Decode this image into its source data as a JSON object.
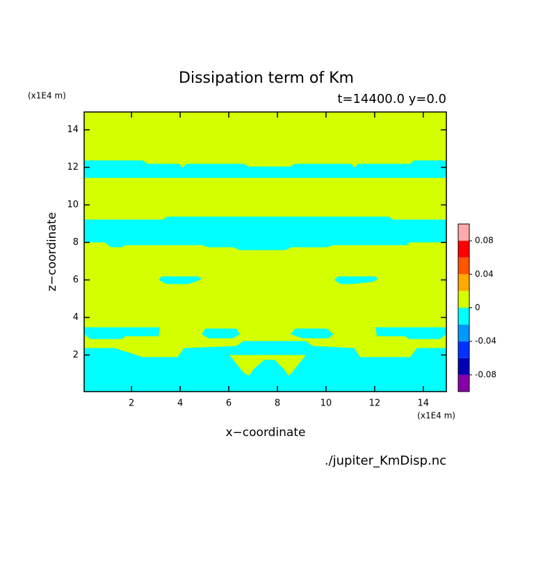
{
  "chart_data": {
    "type": "contour",
    "title": "Dissipation term of Km",
    "subtitle": "t=14400.0 y=0.0",
    "xlabel": "x−coordinate",
    "ylabel": "z−coordinate",
    "xunit": "(x1E4 m)",
    "yunit": "(x1E4 m)",
    "source": "./jupiter_KmDisp.nc",
    "xlim": [
      0.05,
      14.95
    ],
    "ylim": [
      0.05,
      14.95
    ],
    "xticks": [
      2,
      4,
      6,
      8,
      10,
      12,
      14
    ],
    "yticks": [
      2,
      4,
      6,
      8,
      10,
      12,
      14
    ],
    "background": "#d4ff00",
    "regions": [
      {
        "color": "#00ffff",
        "x": [
          0.05,
          2.46,
          2.66,
          3.97,
          4.09,
          4.26,
          6.6,
          6.83,
          8.54,
          8.71,
          11.03,
          11.17,
          11.34,
          13.46,
          13.63,
          14.95,
          14.95,
          0.05
        ],
        "y": [
          12.37,
          12.37,
          12.19,
          12.19,
          12.0,
          12.19,
          12.19,
          12.04,
          12.04,
          12.19,
          12.19,
          12.0,
          12.19,
          12.19,
          12.37,
          12.37,
          11.44,
          11.44
        ]
      },
      {
        "color": "#00ffff",
        "x": [
          0.05,
          3.31,
          3.46,
          12.6,
          12.74,
          14.95,
          14.95,
          13.46,
          13.31,
          10.31,
          10.03,
          8.6,
          8.31,
          6.46,
          6.17,
          5.17,
          4.89,
          1.74,
          1.6,
          1.17,
          0.89,
          0.05
        ],
        "y": [
          9.22,
          9.22,
          9.37,
          9.37,
          9.22,
          9.22,
          8.0,
          8.0,
          7.85,
          7.85,
          7.74,
          7.74,
          7.59,
          7.59,
          7.74,
          7.74,
          7.85,
          7.85,
          7.74,
          7.74,
          8.0,
          8.0
        ]
      },
      {
        "color": "#00ffff",
        "x": [
          3.23,
          4.74,
          4.89,
          4.6,
          4.31,
          3.46,
          3.11
        ],
        "y": [
          6.19,
          6.19,
          6.04,
          5.89,
          5.78,
          5.78,
          6.0
        ]
      },
      {
        "color": "#00ffff",
        "x": [
          10.49,
          12.03,
          12.14,
          11.89,
          11.03,
          10.6,
          10.34
        ],
        "y": [
          6.19,
          6.19,
          6.04,
          5.89,
          5.78,
          5.78,
          6.0
        ]
      },
      {
        "color": "#00ffff",
        "x": [
          0.05,
          3.17,
          3.11,
          1.74,
          1.6,
          0.31,
          0.05
        ],
        "y": [
          3.48,
          3.48,
          3.0,
          3.0,
          2.85,
          2.85,
          3.11
        ]
      },
      {
        "color": "#00ffff",
        "x": [
          14.95,
          12.03,
          12.09,
          13.26,
          13.4,
          14.69,
          14.95
        ],
        "y": [
          3.48,
          3.48,
          3.0,
          3.0,
          2.85,
          2.85,
          3.11
        ]
      },
      {
        "color": "#00ffff",
        "x": [
          5.03,
          6.31,
          6.46,
          6.17,
          5.17,
          4.89
        ],
        "y": [
          3.41,
          3.41,
          3.11,
          2.89,
          2.89,
          3.11
        ]
      },
      {
        "color": "#00ffff",
        "x": [
          8.74,
          10.03,
          10.31,
          10.09,
          9.03,
          8.54
        ],
        "y": [
          3.41,
          3.41,
          3.11,
          2.89,
          2.89,
          3.11
        ]
      },
      {
        "color": "#00ffff",
        "x": [
          0.05,
          1.31,
          1.74,
          2.46,
          3.89,
          4.17,
          6.31,
          6.6,
          9.17,
          9.46,
          11.17,
          11.4,
          13.46,
          13.74,
          14.95,
          14.95,
          0.05
        ],
        "y": [
          2.37,
          2.37,
          2.19,
          1.89,
          1.89,
          2.37,
          2.48,
          2.74,
          2.74,
          2.48,
          2.37,
          1.89,
          1.89,
          2.37,
          2.37,
          0.05,
          0.05
        ]
      },
      {
        "color": "#d4ff00",
        "x": [
          6.03,
          9.17,
          8.6,
          8.46,
          8.26,
          7.89,
          7.46,
          7.03,
          6.83,
          6.6
        ],
        "y": [
          2.0,
          2.0,
          1.07,
          0.89,
          1.26,
          1.74,
          1.74,
          1.26,
          0.89,
          1.07
        ]
      }
    ],
    "colorbar": {
      "levels": [
        -0.1,
        -0.08,
        -0.06,
        -0.04,
        -0.02,
        0,
        0.02,
        0.04,
        0.06,
        0.08,
        0.1
      ],
      "colors": [
        "#8800aa",
        "#0000b4",
        "#0033ff",
        "#0099ff",
        "#00ffff",
        "#d4ff00",
        "#ffaa00",
        "#ff5500",
        "#ff0000",
        "#ffaaaa"
      ],
      "ticks": [
        -0.08,
        -0.04,
        0,
        0.04,
        0.08
      ]
    }
  }
}
